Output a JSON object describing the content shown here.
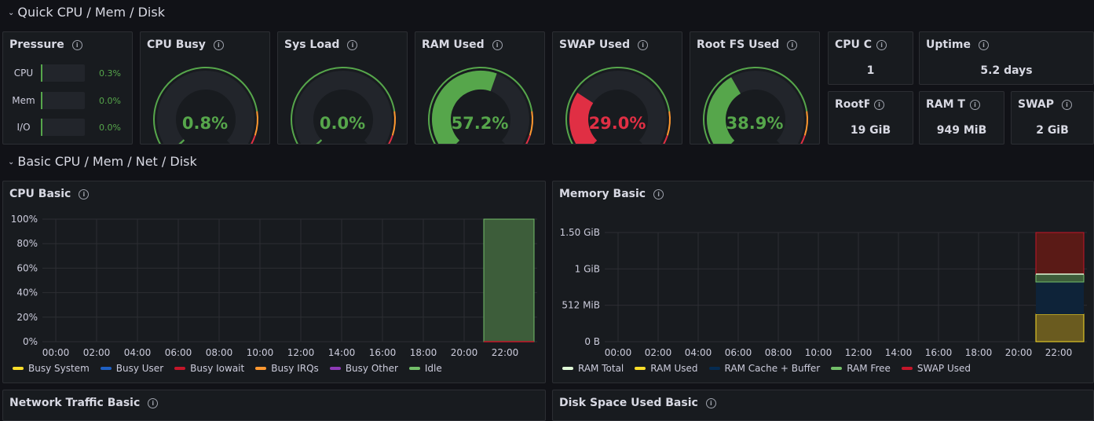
{
  "rows": {
    "quick": "Quick CPU / Mem / Disk",
    "basic": "Basic CPU / Mem / Net / Disk"
  },
  "pressure": {
    "title": "Pressure",
    "items": [
      {
        "label": "CPU",
        "value": "0.3%",
        "fraction": 0.003
      },
      {
        "label": "Mem",
        "value": "0.0%",
        "fraction": 0.0
      },
      {
        "label": "I/O",
        "value": "0.0%",
        "fraction": 0.0
      }
    ]
  },
  "gauges": [
    {
      "title": "CPU Busy",
      "value": "0.8%",
      "percent": 0.8,
      "color": "#56a64b"
    },
    {
      "title": "Sys Load",
      "value": "0.0%",
      "percent": 0.0,
      "color": "#56a64b"
    },
    {
      "title": "RAM Used",
      "value": "57.2%",
      "percent": 57.2,
      "color": "#56a64b"
    },
    {
      "title": "SWAP Used",
      "value": "29.0%",
      "percent": 29.0,
      "color": "#e02f44"
    },
    {
      "title": "Root FS Used",
      "value": "38.9%",
      "percent": 38.9,
      "color": "#56a64b"
    }
  ],
  "stats": {
    "cpu_cores": {
      "title": "CPU C",
      "value": "1"
    },
    "uptime": {
      "title": "Uptime",
      "value": "5.2 days"
    },
    "rootfs": {
      "title": "RootFS",
      "value": "19 GiB"
    },
    "ram_total": {
      "title": "RAM T",
      "value": "949 MiB"
    },
    "swap": {
      "title": "SWAP",
      "value": "2 GiB"
    }
  },
  "cpu_basic": {
    "title": "CPU Basic",
    "chart_data": {
      "type": "area",
      "y_ticks": [
        "0%",
        "20%",
        "40%",
        "60%",
        "80%",
        "100%"
      ],
      "x_ticks": [
        "00:00",
        "02:00",
        "04:00",
        "06:00",
        "08:00",
        "10:00",
        "12:00",
        "14:00",
        "16:00",
        "18:00",
        "20:00",
        "22:00"
      ],
      "x_data_start": "21:00",
      "series": [
        {
          "name": "Busy System",
          "color": "#fade2a"
        },
        {
          "name": "Busy User",
          "color": "#1f60c4"
        },
        {
          "name": "Busy Iowait",
          "color": "#c4162a"
        },
        {
          "name": "Busy IRQs",
          "color": "#ff9830"
        },
        {
          "name": "Busy Other",
          "color": "#8f3bb8"
        },
        {
          "name": "Idle",
          "color": "#73bf69"
        }
      ]
    }
  },
  "memory_basic": {
    "title": "Memory Basic",
    "chart_data": {
      "type": "area",
      "y_ticks": [
        "0 B",
        "512 MiB",
        "1 GiB",
        "1.50 GiB"
      ],
      "x_ticks": [
        "00:00",
        "02:00",
        "04:00",
        "06:00",
        "08:00",
        "10:00",
        "12:00",
        "14:00",
        "16:00",
        "18:00",
        "20:00",
        "22:00"
      ],
      "x_data_start": "21:00",
      "series": [
        {
          "name": "RAM Total",
          "color": "#e0f9d7"
        },
        {
          "name": "RAM Used",
          "color": "#fade2a"
        },
        {
          "name": "RAM Cache + Buffer",
          "color": "#052b51"
        },
        {
          "name": "RAM Free",
          "color": "#73bf69"
        },
        {
          "name": "SWAP Used",
          "color": "#c4162a"
        }
      ]
    }
  },
  "network_basic": {
    "title": "Network Traffic Basic"
  },
  "disk_basic": {
    "title": "Disk Space Used Basic"
  }
}
